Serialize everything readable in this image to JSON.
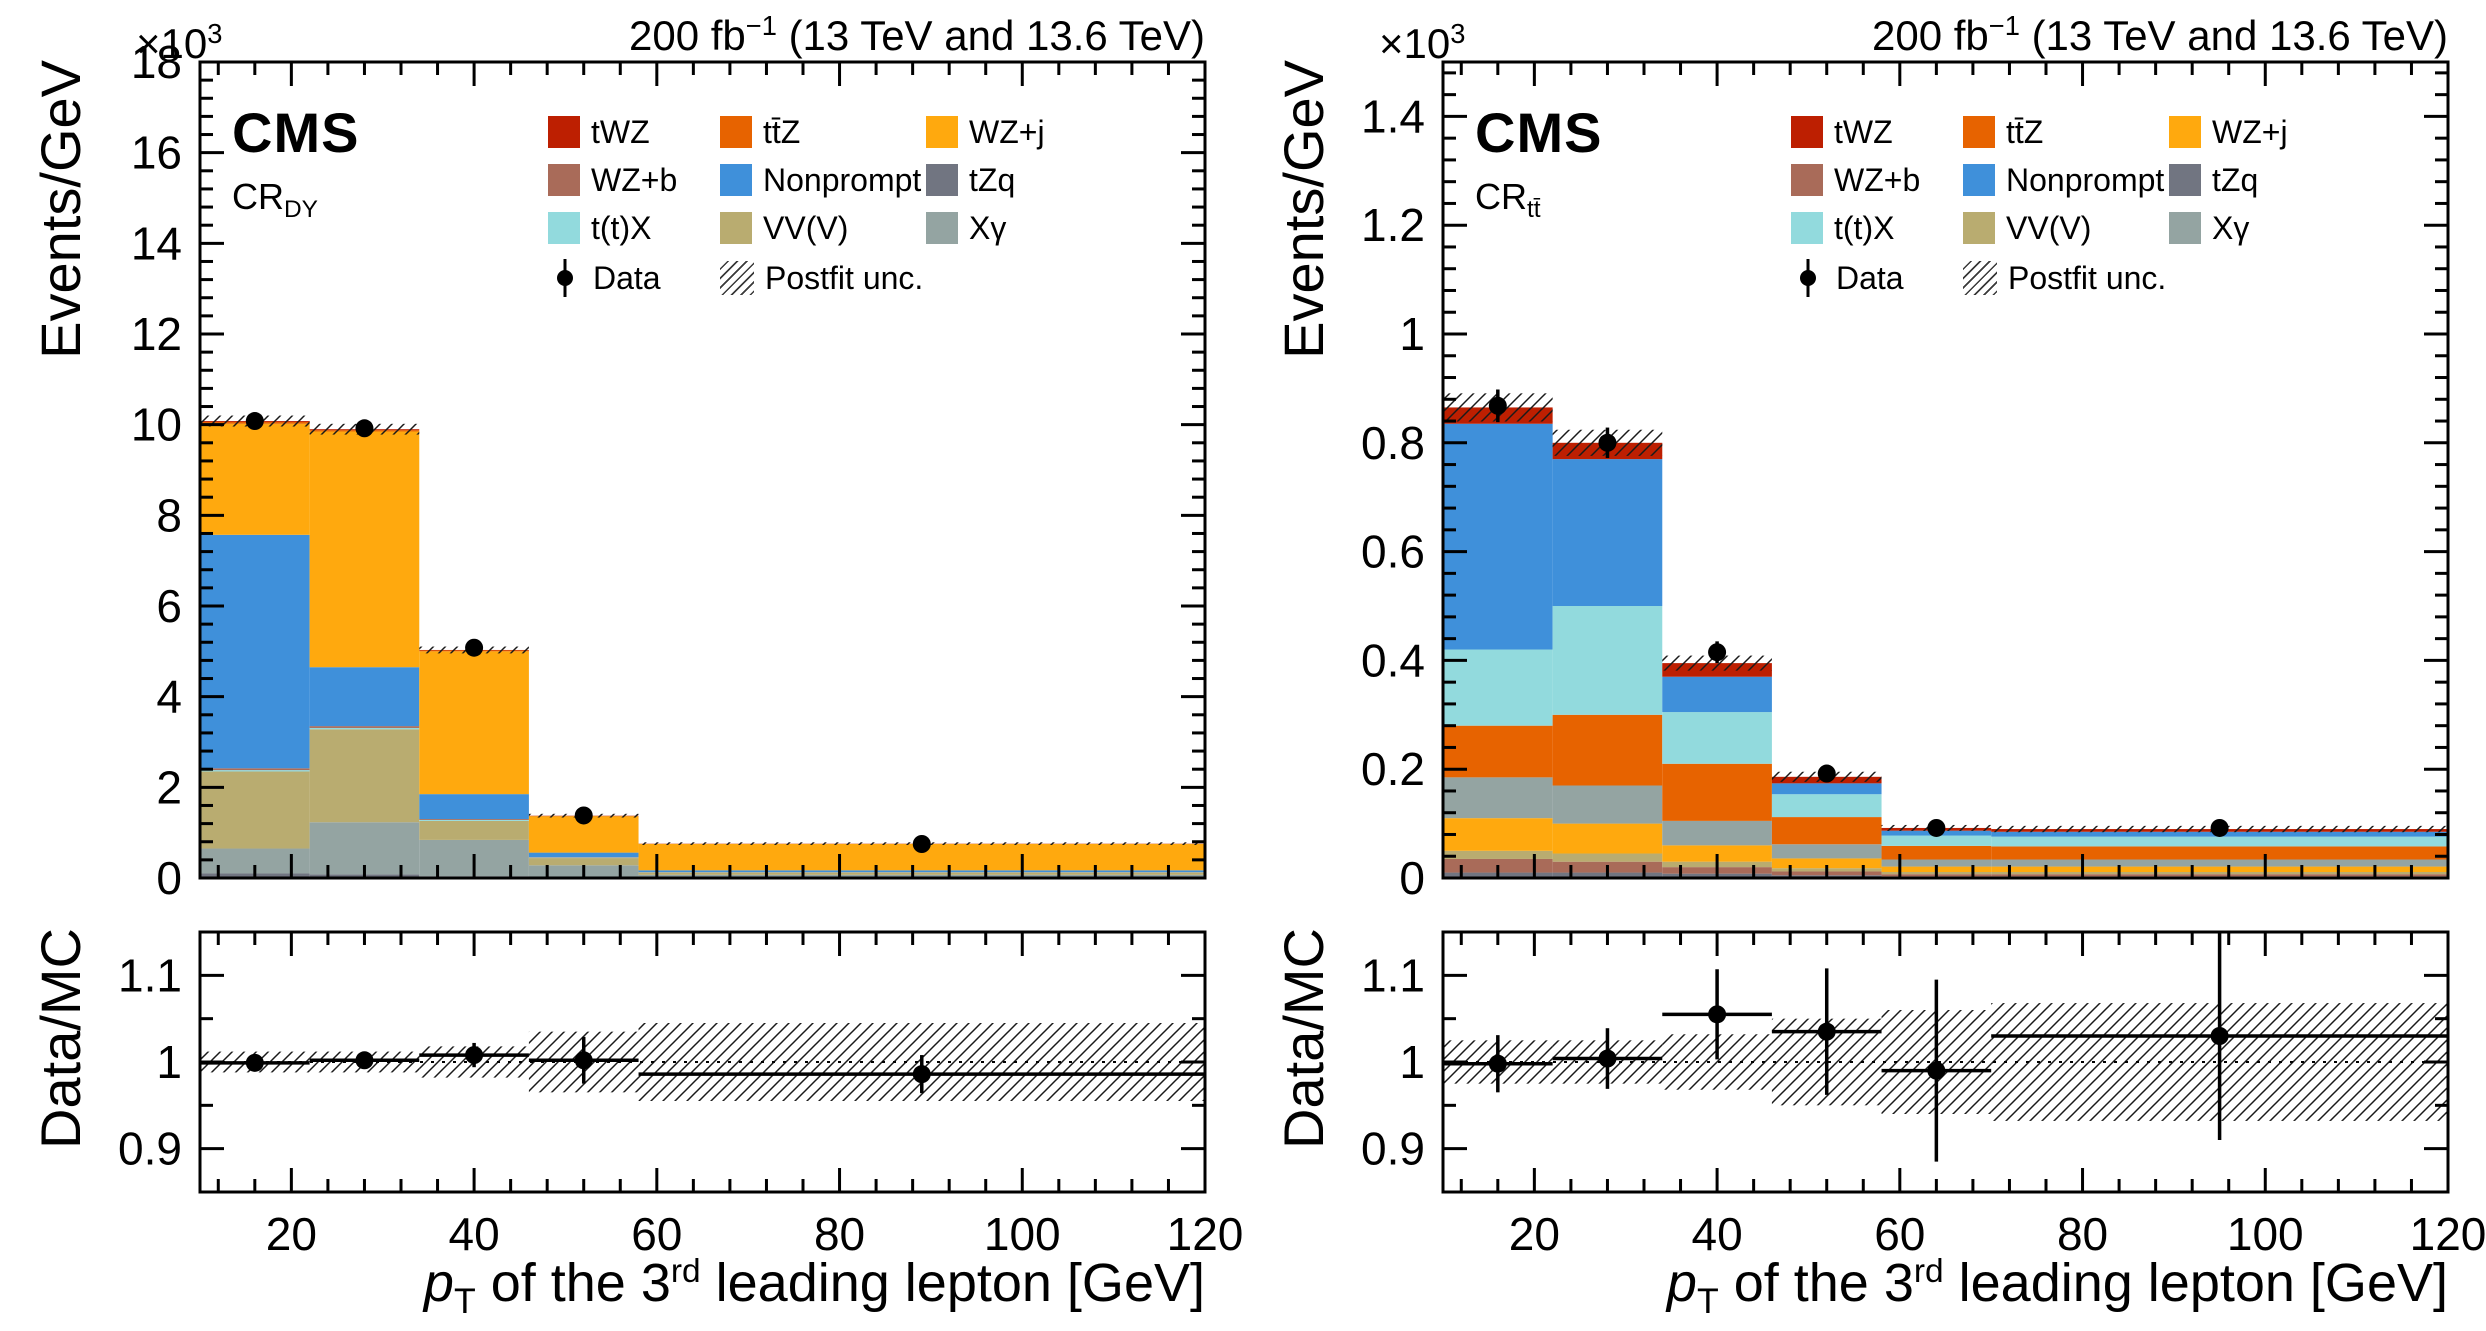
{
  "shared": {
    "cms_label": "CMS",
    "lumi": {
      "pre": "200 fb",
      "sup": "−1",
      "post": " (13 TeV and 13.6 TeV)"
    },
    "y_exp": {
      "pre": "×10",
      "sup": "3"
    },
    "y_title_main": "Events/GeV",
    "y_title_ratio": "Data/MC",
    "x_title": {
      "p": "p",
      "sub": "T",
      "mid": " of the 3",
      "sup": "rd",
      "post": " leading lepton [GeV]"
    },
    "legend": {
      "entries": [
        {
          "id": "tWZ",
          "label": "tWZ",
          "color": "#bd1f01"
        },
        {
          "id": "ttZ",
          "label": "tt̄Z",
          "color": "#e76300"
        },
        {
          "id": "WZj",
          "label": "WZ+j",
          "color": "#ffa90e"
        },
        {
          "id": "WZb",
          "label": "WZ+b",
          "color": "#a96b59"
        },
        {
          "id": "Nonprompt",
          "label": "Nonprompt",
          "color": "#3f90da"
        },
        {
          "id": "tZq",
          "label": "tZq",
          "color": "#717581"
        },
        {
          "id": "ttX",
          "label": "t(t)X",
          "color": "#92dadd"
        },
        {
          "id": "VVV",
          "label": "VV(V)",
          "color": "#b9ac70"
        },
        {
          "id": "Xgamma",
          "label": "Xγ",
          "color": "#94a4a2"
        }
      ],
      "data_label": "Data",
      "unc_label": "Postfit unc."
    }
  },
  "chart_data": [
    {
      "type": "bar",
      "stacked": true,
      "region_label": {
        "text": "CR",
        "sub": "DY"
      },
      "lumi": "200 fb⁻¹ (13 TeV and 13.6 TeV)",
      "xlabel": "pT of the 3rd leading lepton [GeV]",
      "ylabel": "Events/GeV (×10³)",
      "ratio_ylabel": "Data/MC",
      "x": {
        "min": 10,
        "max": 120,
        "edges": [
          10,
          22,
          34,
          46,
          58,
          120
        ],
        "major_ticks": [
          20,
          40,
          60,
          80,
          100,
          120
        ],
        "minor_step": 4
      },
      "y": {
        "min": 0,
        "max": 18,
        "ticks": [
          0,
          2,
          4,
          6,
          8,
          10,
          12,
          14,
          16,
          18
        ],
        "minor_step": 0.4
      },
      "stack_order": [
        "tZq",
        "Xgamma",
        "VVV",
        "ttX",
        "WZb",
        "Nonprompt",
        "WZj",
        "ttZ",
        "tWZ"
      ],
      "series": {
        "tZq": [
          0.1,
          0.08,
          0.04,
          0.02,
          0.01
        ],
        "Xgamma": [
          0.55,
          1.15,
          0.8,
          0.26,
          0.06
        ],
        "VVV": [
          1.7,
          2.05,
          0.42,
          0.16,
          0.05
        ],
        "ttX": [
          0.03,
          0.03,
          0.02,
          0.01,
          0.005
        ],
        "WZb": [
          0.04,
          0.04,
          0.02,
          0.01,
          0.005
        ],
        "Nonprompt": [
          5.15,
          1.3,
          0.55,
          0.1,
          0.04
        ],
        "WZj": [
          2.45,
          5.2,
          3.15,
          0.8,
          0.58
        ],
        "ttZ": [
          0.04,
          0.03,
          0.02,
          0.01,
          0.005
        ],
        "tWZ": [
          0.02,
          0.02,
          0.01,
          0.005,
          0.003
        ]
      },
      "unc_rel": [
        0.012,
        0.012,
        0.015,
        0.03,
        0.04
      ],
      "data": {
        "x": [
          16,
          28,
          40,
          52,
          89
        ],
        "y": [
          10.08,
          9.92,
          5.08,
          1.38,
          0.75
        ],
        "yerr": [
          0.09,
          0.09,
          0.06,
          0.035,
          0.012
        ]
      },
      "ratio": {
        "ylim": [
          0.85,
          1.15
        ],
        "ticks": [
          0.9,
          1,
          1.1
        ],
        "minor_step": 0.05,
        "y": [
          0.999,
          1.002,
          1.008,
          1.002,
          0.986
        ],
        "yerr": [
          0.01,
          0.01,
          0.014,
          0.027,
          0.022
        ],
        "band": [
          0.012,
          0.012,
          0.018,
          0.035,
          0.045
        ]
      }
    },
    {
      "type": "bar",
      "stacked": true,
      "region_label": {
        "text": "CR",
        "sub": "tt̄"
      },
      "lumi": "200 fb⁻¹ (13 TeV and 13.6 TeV)",
      "xlabel": "pT of the 3rd leading lepton [GeV]",
      "ylabel": "Events/GeV (×10³)",
      "ratio_ylabel": "Data/MC",
      "x": {
        "min": 10,
        "max": 120,
        "edges": [
          10,
          22,
          34,
          46,
          58,
          70,
          120
        ],
        "major_ticks": [
          20,
          40,
          60,
          80,
          100,
          120
        ],
        "minor_step": 4
      },
      "y": {
        "min": 0,
        "max": 1.5,
        "ticks": [
          0,
          0.2,
          0.4,
          0.6,
          0.8,
          1,
          1.2,
          1.4
        ],
        "minor_step": 0.04
      },
      "stack_order": [
        "tZq",
        "WZb",
        "VVV",
        "WZj",
        "Xgamma",
        "ttZ",
        "ttX",
        "Nonprompt",
        "tWZ"
      ],
      "series": {
        "tZq": [
          0.01,
          0.01,
          0.008,
          0.005,
          0.003,
          0.003
        ],
        "WZb": [
          0.025,
          0.02,
          0.012,
          0.007,
          0.004,
          0.004
        ],
        "VVV": [
          0.015,
          0.015,
          0.01,
          0.006,
          0.004,
          0.004
        ],
        "WZj": [
          0.06,
          0.055,
          0.03,
          0.018,
          0.01,
          0.01
        ],
        "Xgamma": [
          0.075,
          0.07,
          0.045,
          0.026,
          0.013,
          0.013
        ],
        "ttZ": [
          0.095,
          0.13,
          0.105,
          0.05,
          0.025,
          0.024
        ],
        "ttX": [
          0.14,
          0.2,
          0.095,
          0.042,
          0.019,
          0.018
        ],
        "Nonprompt": [
          0.415,
          0.27,
          0.065,
          0.02,
          0.009,
          0.009
        ],
        "tWZ": [
          0.03,
          0.03,
          0.025,
          0.012,
          0.005,
          0.005
        ]
      },
      "unc_rel": [
        0.03,
        0.03,
        0.035,
        0.05,
        0.06,
        0.065
      ],
      "data": {
        "x": [
          16,
          28,
          40,
          52,
          64,
          95
        ],
        "y": [
          0.868,
          0.8,
          0.415,
          0.192,
          0.092,
          0.092
        ],
        "yerr": [
          0.03,
          0.028,
          0.02,
          0.013,
          0.009,
          0.006
        ]
      },
      "ratio": {
        "ylim": [
          0.85,
          1.15
        ],
        "ticks": [
          0.9,
          1,
          1.1
        ],
        "minor_step": 0.05,
        "y": [
          0.998,
          1.004,
          1.055,
          1.035,
          0.99,
          1.03
        ],
        "yerr": [
          0.033,
          0.035,
          0.052,
          0.073,
          0.105,
          0.12
        ],
        "band": [
          0.025,
          0.025,
          0.032,
          0.05,
          0.06,
          0.068
        ]
      }
    }
  ]
}
